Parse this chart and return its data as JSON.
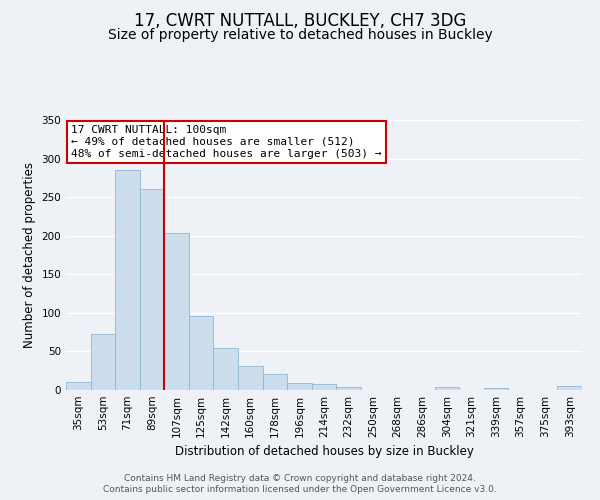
{
  "title": "17, CWRT NUTTALL, BUCKLEY, CH7 3DG",
  "subtitle": "Size of property relative to detached houses in Buckley",
  "xlabel": "Distribution of detached houses by size in Buckley",
  "ylabel": "Number of detached properties",
  "bar_labels": [
    "35sqm",
    "53sqm",
    "71sqm",
    "89sqm",
    "107sqm",
    "125sqm",
    "142sqm",
    "160sqm",
    "178sqm",
    "196sqm",
    "214sqm",
    "232sqm",
    "250sqm",
    "268sqm",
    "286sqm",
    "304sqm",
    "321sqm",
    "339sqm",
    "357sqm",
    "375sqm",
    "393sqm"
  ],
  "bar_values": [
    10,
    73,
    285,
    260,
    204,
    96,
    54,
    31,
    21,
    9,
    8,
    4,
    0,
    0,
    0,
    4,
    0,
    3,
    0,
    0,
    5
  ],
  "bar_color": "#ccdded",
  "bar_edge_color": "#90b8d0",
  "vline_pos": 3.5,
  "vline_color": "#cc0000",
  "ylim": [
    0,
    350
  ],
  "yticks": [
    0,
    50,
    100,
    150,
    200,
    250,
    300,
    350
  ],
  "annotation_title": "17 CWRT NUTTALL: 100sqm",
  "annotation_line1": "← 49% of detached houses are smaller (512)",
  "annotation_line2": "48% of semi-detached houses are larger (503) →",
  "annotation_box_color": "#ffffff",
  "annotation_box_edge": "#cc0000",
  "footer1": "Contains HM Land Registry data © Crown copyright and database right 2024.",
  "footer2": "Contains public sector information licensed under the Open Government Licence v3.0.",
  "background_color": "#eef2f7",
  "grid_color": "#ffffff",
  "title_fontsize": 12,
  "subtitle_fontsize": 10,
  "axis_label_fontsize": 8.5,
  "tick_fontsize": 7.5,
  "footer_fontsize": 6.5,
  "ann_fontsize": 8.0
}
